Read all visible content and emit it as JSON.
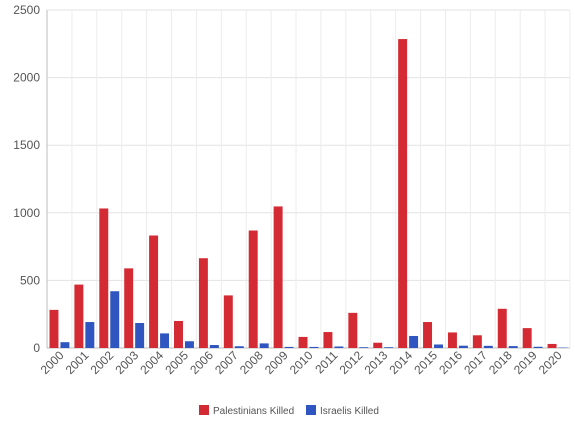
{
  "chart_data": {
    "type": "bar",
    "title": "",
    "xlabel": "",
    "ylabel": "",
    "ylim": [
      0,
      2500
    ],
    "yticks": [
      0,
      500,
      1000,
      1500,
      2000,
      2500
    ],
    "grid": true,
    "legend_position": "bottom",
    "categories": [
      "2000",
      "2001",
      "2002",
      "2003",
      "2004",
      "2005",
      "2006",
      "2007",
      "2008",
      "2009",
      "2010",
      "2011",
      "2012",
      "2013",
      "2014",
      "2015",
      "2016",
      "2017",
      "2018",
      "2019",
      "2020"
    ],
    "series": [
      {
        "name": "Palestinians Killed",
        "color": "#d42a33",
        "values": [
          282,
          469,
          1032,
          589,
          832,
          200,
          664,
          389,
          869,
          1047,
          82,
          118,
          260,
          39,
          2285,
          192,
          115,
          94,
          290,
          147,
          30
        ]
      },
      {
        "name": "Israelis Killed",
        "color": "#2f56c0",
        "values": [
          43,
          192,
          420,
          185,
          108,
          50,
          22,
          13,
          34,
          8,
          8,
          11,
          6,
          6,
          89,
          26,
          17,
          16,
          14,
          9,
          3
        ]
      }
    ]
  }
}
